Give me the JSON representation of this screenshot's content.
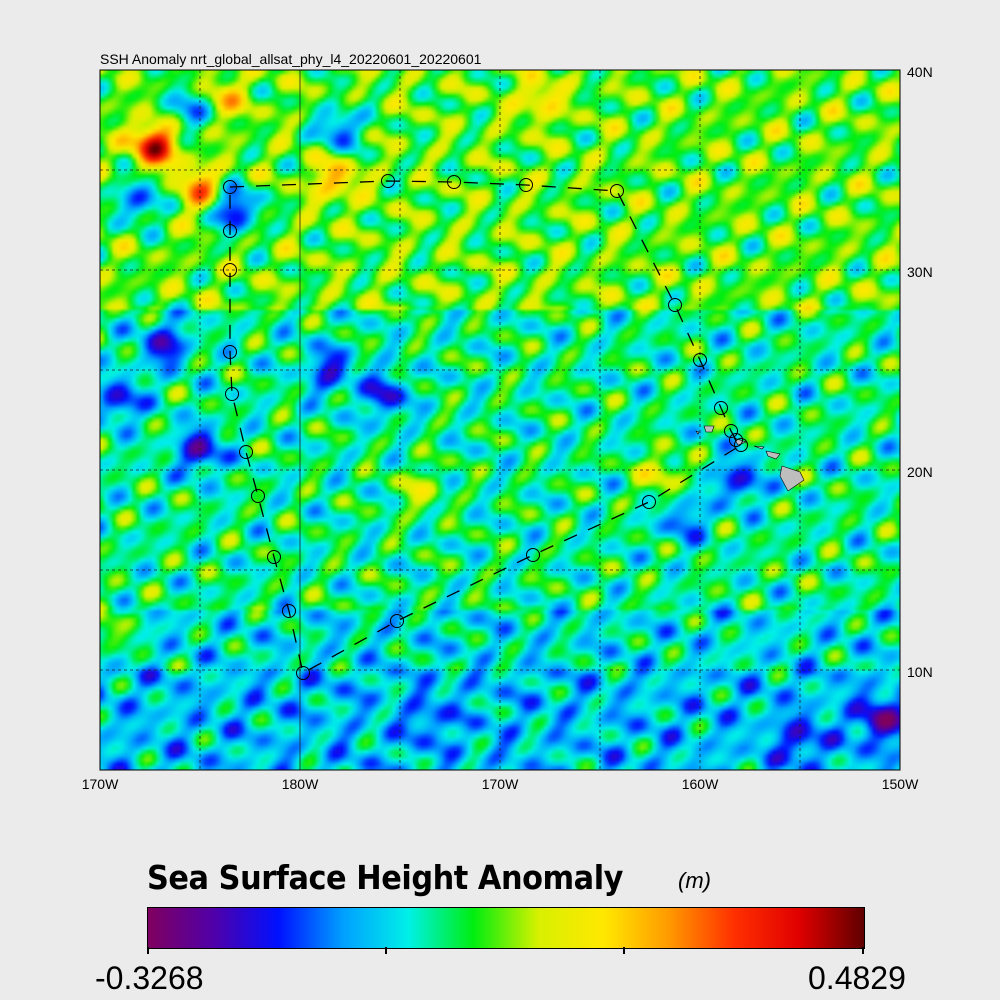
{
  "title": "SSH Anomaly nrt_global_allsat_phy_l4_20220601_20220601",
  "x_tick_labels": [
    "170W",
    "180W",
    "170W",
    "160W",
    "150W"
  ],
  "y_tick_labels": [
    "40N",
    "30N",
    "20N",
    "10N"
  ],
  "colorbar": {
    "title": "Sea Surface Height Anomaly",
    "units": "(m)",
    "min_label": "-0.3268",
    "max_label": "0.4829",
    "min": -0.3268,
    "max": 0.4829,
    "colors": [
      "#7f005f",
      "#5000a8",
      "#0010ff",
      "#00a0ff",
      "#00f0e8",
      "#00ee10",
      "#d8f000",
      "#ffe800",
      "#ff9a00",
      "#ff3000",
      "#e00000",
      "#600000"
    ]
  },
  "chart_data": {
    "type": "heatmap",
    "variable": "Sea Surface Height Anomaly",
    "units": "m",
    "lon_range": [
      170,
      210
    ],
    "lat_range": [
      5,
      40
    ],
    "grid": true,
    "grid_lon_step": 5,
    "grid_lat_step": 5,
    "features": [
      {
        "lon": 172.75,
        "lat": 36.25,
        "value": 0.38
      },
      {
        "lon": 175.0,
        "lat": 34.0,
        "value": 0.24
      },
      {
        "lon": -178.25,
        "lat": 34.6,
        "value": 0.2
      },
      {
        "lon": 176.15,
        "lat": 38.5,
        "value": 0.17
      },
      {
        "lon": 176.75,
        "lat": 33.0,
        "value": -0.27
      },
      {
        "lon": 172.0,
        "lat": 33.5,
        "value": -0.2
      },
      {
        "lon": 171.0,
        "lat": 23.5,
        "value": -0.2
      },
      {
        "lon": 175.0,
        "lat": 21.0,
        "value": -0.24
      },
      {
        "lon": 173.25,
        "lat": 26.25,
        "value": -0.22
      },
      {
        "lon": -178.5,
        "lat": 25.0,
        "value": -0.2
      },
      {
        "lon": -175.75,
        "lat": 23.75,
        "value": -0.2
      },
      {
        "lon": -178.0,
        "lat": 37.0,
        "value": -0.2
      },
      {
        "lon": 174.5,
        "lat": 38.0,
        "value": -0.18
      },
      {
        "lon": -158.0,
        "lat": 19.5,
        "value": -0.2
      },
      {
        "lon": -160.75,
        "lat": 17.5,
        "value": -0.15
      },
      {
        "lon": -155.0,
        "lat": 6.5,
        "value": -0.15
      },
      {
        "lon": -151.0,
        "lat": 7.5,
        "value": -0.22
      },
      {
        "lon": -173.5,
        "lat": 7.5,
        "value": -0.1
      },
      {
        "lon": -162.0,
        "lat": 19.8,
        "value": 0.15
      },
      {
        "lon": -168.0,
        "lat": 38.5,
        "value": 0.15
      },
      {
        "lon": -174.0,
        "lat": 19.0,
        "value": 0.12
      },
      {
        "lon": 170.5,
        "lat": 12.0,
        "value": 0.12
      }
    ],
    "track": {
      "style": "dashed line with circle markers",
      "points": [
        {
          "lon": 176.5,
          "lat": 34.15
        },
        {
          "lon": -175.6,
          "lat": 34.45
        },
        {
          "lon": -172.3,
          "lat": 34.4
        },
        {
          "lon": -168.7,
          "lat": 34.25
        },
        {
          "lon": -164.15,
          "lat": 33.95
        },
        {
          "lon": -161.25,
          "lat": 28.25
        },
        {
          "lon": -160.0,
          "lat": 25.5
        },
        {
          "lon": -158.95,
          "lat": 23.1
        },
        {
          "lon": -158.45,
          "lat": 21.95
        },
        {
          "lon": -158.2,
          "lat": 21.5
        },
        {
          "lon": -157.95,
          "lat": 21.25
        },
        {
          "lon": -162.55,
          "lat": 18.4
        },
        {
          "lon": -168.35,
          "lat": 15.75
        },
        {
          "lon": -175.15,
          "lat": 12.45
        },
        {
          "lon": -179.85,
          "lat": 9.85
        },
        {
          "lon": 179.45,
          "lat": 12.95
        },
        {
          "lon": 178.7,
          "lat": 15.65
        },
        {
          "lon": 177.9,
          "lat": 18.7
        },
        {
          "lon": 177.3,
          "lat": 20.9
        },
        {
          "lon": 176.6,
          "lat": 23.8
        },
        {
          "lon": 176.5,
          "lat": 25.9
        },
        {
          "lon": 176.5,
          "lat": 30.0
        },
        {
          "lon": 176.5,
          "lat": 31.95
        },
        {
          "lon": 176.5,
          "lat": 34.15
        }
      ]
    },
    "land": {
      "color": "#bebebe"
    }
  }
}
